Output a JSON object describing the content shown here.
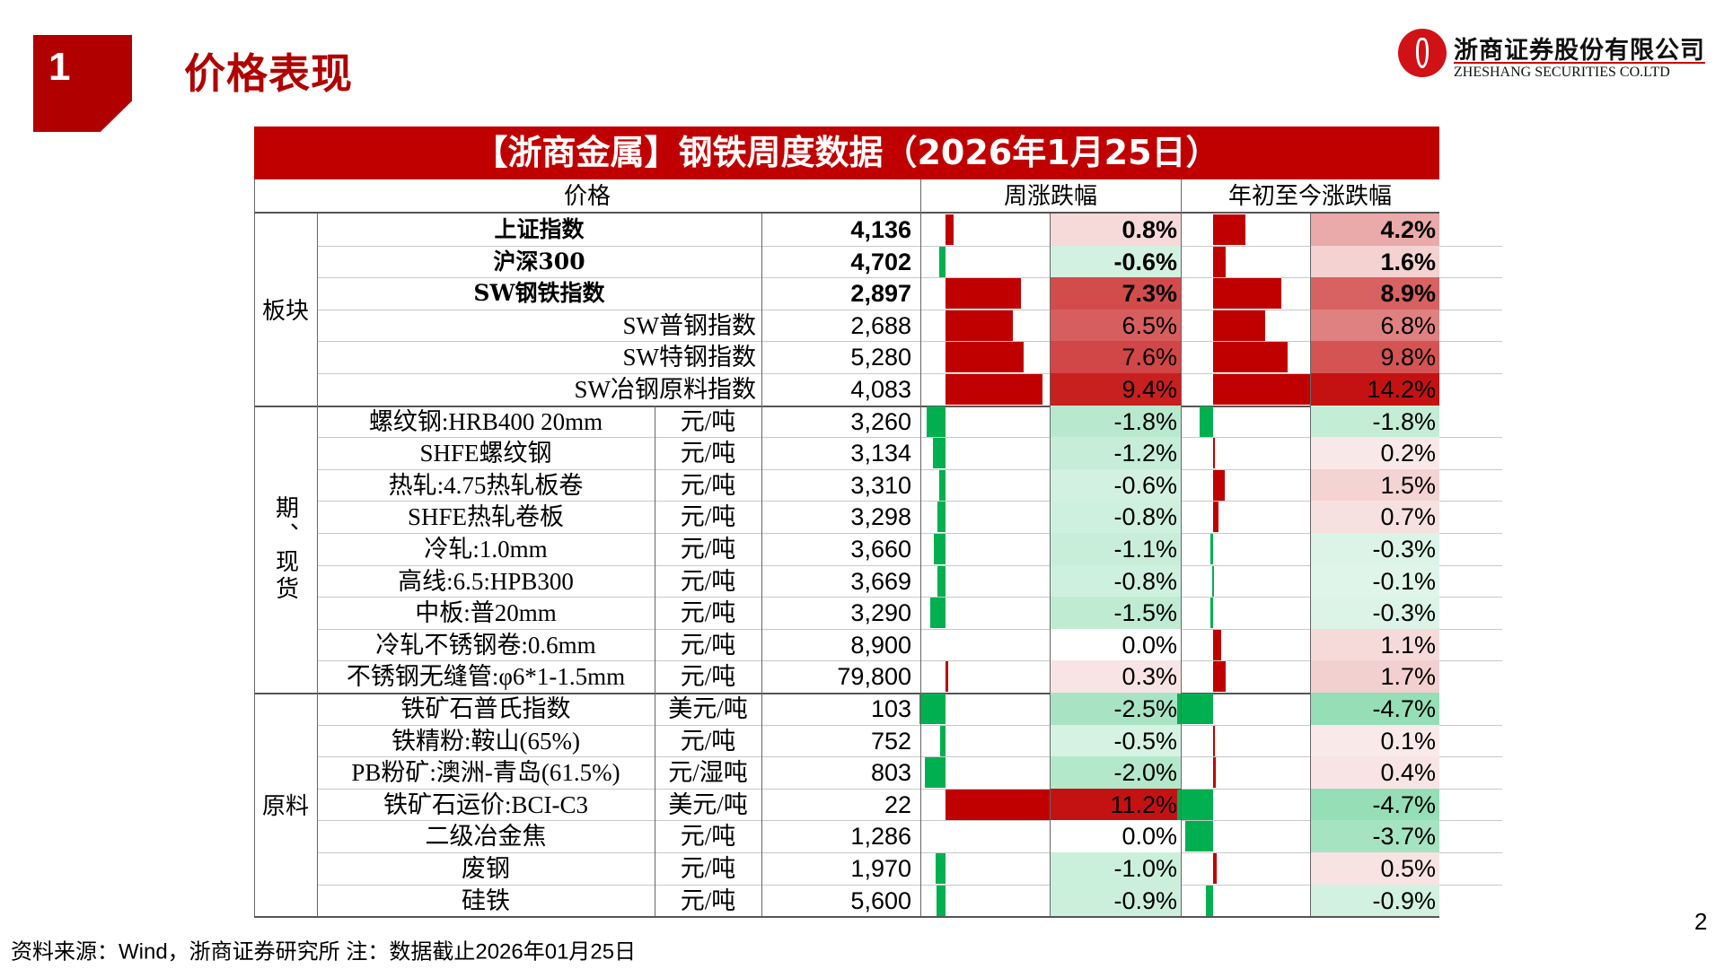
{
  "section": {
    "number": "1",
    "title": "价格表现"
  },
  "logo": {
    "cn": "浙商证券股份有限公司",
    "en": "ZHESHANG SECURITIES CO.LTD"
  },
  "table": {
    "title": "【浙商金属】钢铁周度数据（2026年1月25日）",
    "headers": {
      "price": "价格",
      "weekly": "周涨跌幅",
      "ytd": "年初至今涨跌幅"
    },
    "groups": [
      {
        "label": "板块",
        "start": 0,
        "count": 6
      },
      {
        "label": "期、现货",
        "start": 6,
        "count": 9
      },
      {
        "label": "原料",
        "start": 15,
        "count": 7
      }
    ],
    "rows": [
      {
        "name": "上证指数",
        "unit": "",
        "value": "4,136",
        "weekly": "0.8%",
        "ytd": "4.2%",
        "w": 0.8,
        "y": 4.2,
        "bold": true
      },
      {
        "name": "沪深300",
        "unit": "",
        "value": "4,702",
        "weekly": "-0.6%",
        "ytd": "1.6%",
        "w": -0.6,
        "y": 1.6,
        "bold": true
      },
      {
        "name": "SW钢铁指数",
        "unit": "",
        "value": "2,897",
        "weekly": "7.3%",
        "ytd": "8.9%",
        "w": 7.3,
        "y": 8.9,
        "bold": true
      },
      {
        "name": "SW普钢指数",
        "unit": "",
        "value": "2,688",
        "weekly": "6.5%",
        "ytd": "6.8%",
        "w": 6.5,
        "y": 6.8,
        "bold": false
      },
      {
        "name": "SW特钢指数",
        "unit": "",
        "value": "5,280",
        "weekly": "7.6%",
        "ytd": "9.8%",
        "w": 7.6,
        "y": 9.8,
        "bold": false
      },
      {
        "name": "SW冶钢原料指数",
        "unit": "",
        "value": "4,083",
        "weekly": "9.4%",
        "ytd": "14.2%",
        "w": 9.4,
        "y": 14.2,
        "bold": false
      },
      {
        "name": "螺纹钢:HRB400 20mm",
        "unit": "元/吨",
        "value": "3,260",
        "weekly": "-1.8%",
        "ytd": "-1.8%",
        "w": -1.8,
        "y": -1.8,
        "bold": false
      },
      {
        "name": "SHFE螺纹钢",
        "unit": "元/吨",
        "value": "3,134",
        "weekly": "-1.2%",
        "ytd": "0.2%",
        "w": -1.2,
        "y": 0.2,
        "bold": false
      },
      {
        "name": "热轧:4.75热轧板卷",
        "unit": "元/吨",
        "value": "3,310",
        "weekly": "-0.6%",
        "ytd": "1.5%",
        "w": -0.6,
        "y": 1.5,
        "bold": false
      },
      {
        "name": "SHFE热轧卷板",
        "unit": "元/吨",
        "value": "3,298",
        "weekly": "-0.8%",
        "ytd": "0.7%",
        "w": -0.8,
        "y": 0.7,
        "bold": false
      },
      {
        "name": "冷轧:1.0mm",
        "unit": "元/吨",
        "value": "3,660",
        "weekly": "-1.1%",
        "ytd": "-0.3%",
        "w": -1.1,
        "y": -0.3,
        "bold": false
      },
      {
        "name": "高线:6.5:HPB300",
        "unit": "元/吨",
        "value": "3,669",
        "weekly": "-0.8%",
        "ytd": "-0.1%",
        "w": -0.8,
        "y": -0.1,
        "bold": false
      },
      {
        "name": "中板:普20mm",
        "unit": "元/吨",
        "value": "3,290",
        "weekly": "-1.5%",
        "ytd": "-0.3%",
        "w": -1.5,
        "y": -0.3,
        "bold": false
      },
      {
        "name": "冷轧不锈钢卷:0.6mm",
        "unit": "元/吨",
        "value": "8,900",
        "weekly": "0.0%",
        "ytd": "1.1%",
        "w": 0.0,
        "y": 1.1,
        "bold": false
      },
      {
        "name": "不锈钢无缝管:φ6*1-1.5mm",
        "unit": "元/吨",
        "value": "79,800",
        "weekly": "0.3%",
        "ytd": "1.7%",
        "w": 0.3,
        "y": 1.7,
        "bold": false
      },
      {
        "name": "铁矿石普氏指数",
        "unit": "美元/吨",
        "value": "103",
        "weekly": "-2.5%",
        "ytd": "-4.7%",
        "w": -2.5,
        "y": -4.7,
        "bold": false
      },
      {
        "name": "铁精粉:鞍山(65%)",
        "unit": "元/吨",
        "value": "752",
        "weekly": "-0.5%",
        "ytd": "0.1%",
        "w": -0.5,
        "y": 0.1,
        "bold": false
      },
      {
        "name": "PB粉矿:澳洲-青岛(61.5%)",
        "unit": "元/湿吨",
        "value": "803",
        "weekly": "-2.0%",
        "ytd": "0.4%",
        "w": -2.0,
        "y": 0.4,
        "bold": false
      },
      {
        "name": "铁矿石运价:BCI-C3",
        "unit": "美元/吨",
        "value": "22",
        "weekly": "11.2%",
        "ytd": "-4.7%",
        "w": 11.2,
        "y": -4.7,
        "bold": false
      },
      {
        "name": "二级冶金焦",
        "unit": "元/吨",
        "value": "1,286",
        "weekly": "0.0%",
        "ytd": "-3.7%",
        "w": 0.0,
        "y": -3.7,
        "bold": false
      },
      {
        "name": "废钢",
        "unit": "元/吨",
        "value": "1,970",
        "weekly": "-1.0%",
        "ytd": "0.5%",
        "w": -1.0,
        "y": 0.5,
        "bold": false
      },
      {
        "name": "硅铁",
        "unit": "元/吨",
        "value": "5,600",
        "weekly": "-0.9%",
        "ytd": "-0.9%",
        "w": -0.9,
        "y": -0.9,
        "bold": false
      }
    ]
  },
  "colors": {
    "brand_red": "#b00000",
    "title_red": "#c00000",
    "bar_red": "#c00000",
    "bar_green": "#00b050"
  },
  "footer": {
    "source": "资料来源：Wind，浙商证券研究所    注：数据截止2026年01月25日"
  },
  "page_number": "2"
}
